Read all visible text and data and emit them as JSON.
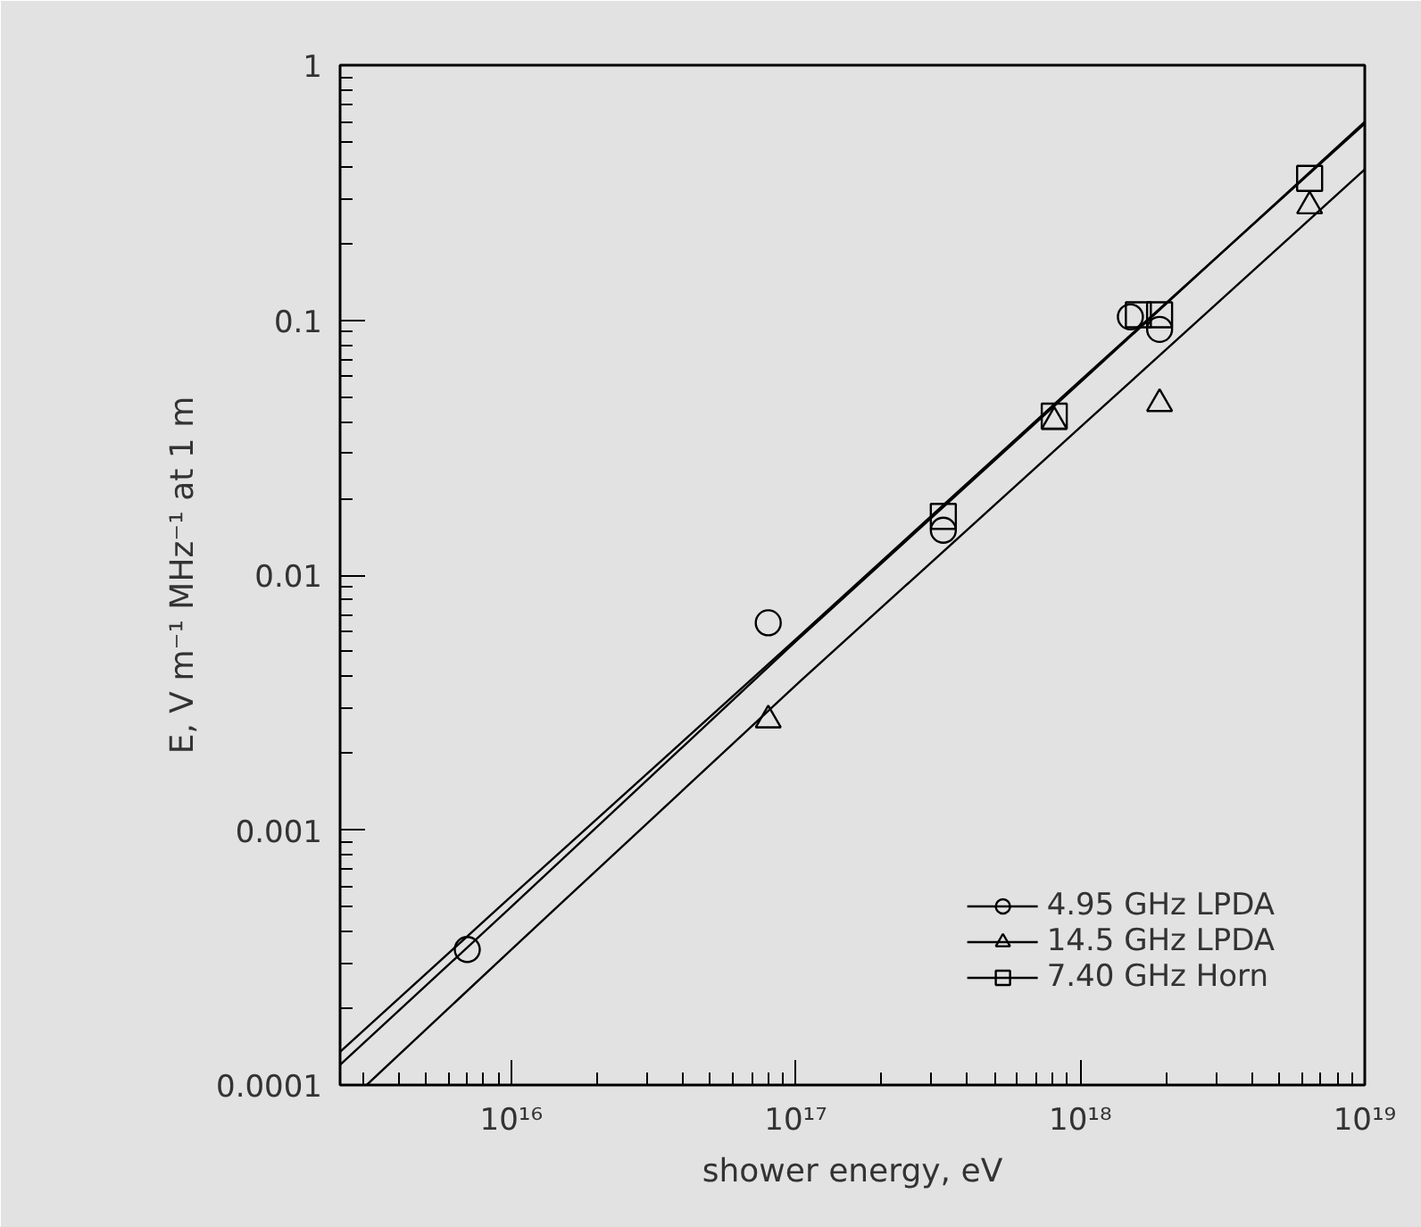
{
  "chart_data": {
    "type": "scatter",
    "xlabel": "shower energy, eV",
    "ylabel": "E, V m⁻¹ MHz⁻¹ at 1 m",
    "log": "xy",
    "grid": false,
    "legend": "bottom right",
    "xlim": [
      2500000000000000.0,
      1e+19
    ],
    "ylim": [
      0.0001,
      1
    ],
    "xticks": [
      {
        "value": 1e+16,
        "label": "10¹⁶"
      },
      {
        "value": 1e+17,
        "label": "10¹⁷"
      },
      {
        "value": 1e+18,
        "label": "10¹⁸"
      },
      {
        "value": 1e+19,
        "label": "10¹⁹"
      }
    ],
    "yticks": [
      {
        "value": 0.0001,
        "label": "0.0001"
      },
      {
        "value": 0.001,
        "label": "0.001"
      },
      {
        "value": 0.01,
        "label": "0.01"
      },
      {
        "value": 0.1,
        "label": "0.1"
      },
      1
    ],
    "series": [
      {
        "name": "4.95 GHz LPDA",
        "color": "#000000",
        "marker": "circle",
        "x": [
          7000000000000000.0,
          8e+16,
          3.3e+17,
          1.5e+18,
          1.9e+18
        ],
        "values": [
          0.00034,
          0.0065,
          0.015,
          0.103,
          0.092
        ]
      },
      {
        "name": "14.5 GHz LPDA",
        "color": "#000000",
        "marker": "triangle",
        "x": [
          8e+16,
          8.1e+17,
          1.9e+18,
          6.4e+18
        ],
        "values": [
          0.0027,
          0.04,
          0.047,
          0.28
        ]
      },
      {
        "name": "7.40 GHz Horn",
        "color": "#000000",
        "marker": "square",
        "x": [
          3.3e+17,
          8.1e+17,
          1.6e+18,
          1.9e+18,
          6.4e+18
        ],
        "values": [
          0.017,
          0.042,
          0.105,
          0.105,
          0.36
        ]
      },
      {
        "type": "line",
        "color": "#000000",
        "x": [
          2500000000000000.0,
          1e+16,
          1e+17,
          1e+18,
          1e+19
        ],
        "values": [
          0.000135,
          0.00055,
          0.0056,
          0.058,
          0.59
        ]
      },
      {
        "type": "line",
        "color": "#000000",
        "x": [
          3100000000000000.0,
          1e+16,
          1e+17,
          1e+18,
          1e+19
        ],
        "values": [
          0.0001,
          0.00034,
          0.0037,
          0.038,
          0.39
        ]
      },
      {
        "type": "line",
        "color": "#000000",
        "x": [
          2500000000000000.0,
          1e+16,
          1e+17,
          1e+18,
          1e+19
        ],
        "values": [
          0.00012,
          0.0005,
          0.0055,
          0.057,
          0.6
        ]
      }
    ]
  }
}
